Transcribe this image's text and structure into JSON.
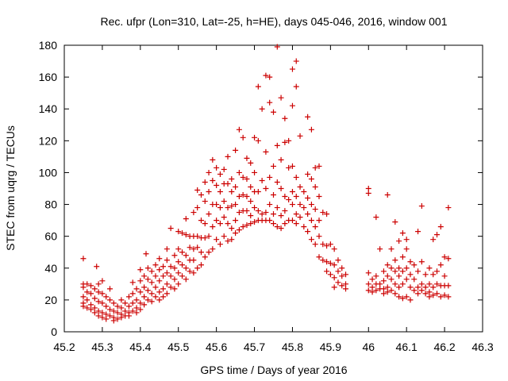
{
  "chart_data": {
    "type": "scatter",
    "title": "Rec. ufpr (Lon=310, Lat=-25, h=HE), days 045-046, 2016, window 001",
    "xlabel": "GPS time / Days of year 2016",
    "ylabel": "STEC from uqrg / TECUs",
    "xlim": [
      45.2,
      46.3
    ],
    "ylim": [
      0,
      180
    ],
    "xticks": [
      "45.2",
      "45.3",
      "45.4",
      "45.5",
      "45.6",
      "45.7",
      "45.8",
      "45.9",
      "46",
      "46.1",
      "46.2",
      "46.3"
    ],
    "yticks": [
      "0",
      "20",
      "40",
      "60",
      "80",
      "100",
      "120",
      "140",
      "160",
      "180"
    ],
    "grid": false,
    "legend": "none",
    "marker": "+",
    "color": "#cc0000",
    "points": [
      [
        45.25,
        46
      ],
      [
        45.25,
        30
      ],
      [
        45.25,
        28
      ],
      [
        45.25,
        22
      ],
      [
        45.25,
        18
      ],
      [
        45.25,
        16
      ],
      [
        45.26,
        30
      ],
      [
        45.26,
        25
      ],
      [
        45.26,
        20
      ],
      [
        45.26,
        15
      ],
      [
        45.27,
        29
      ],
      [
        45.27,
        24
      ],
      [
        45.27,
        17
      ],
      [
        45.27,
        14
      ],
      [
        45.28,
        27
      ],
      [
        45.28,
        21
      ],
      [
        45.28,
        15
      ],
      [
        45.28,
        12
      ],
      [
        45.285,
        41
      ],
      [
        45.29,
        30
      ],
      [
        45.29,
        25
      ],
      [
        45.29,
        19
      ],
      [
        45.29,
        13
      ],
      [
        45.29,
        10
      ],
      [
        45.3,
        32
      ],
      [
        45.3,
        24
      ],
      [
        45.3,
        18
      ],
      [
        45.3,
        12
      ],
      [
        45.3,
        9
      ],
      [
        45.31,
        22
      ],
      [
        45.31,
        16
      ],
      [
        45.31,
        11
      ],
      [
        45.31,
        8
      ],
      [
        45.32,
        27
      ],
      [
        45.32,
        20
      ],
      [
        45.32,
        14
      ],
      [
        45.32,
        10
      ],
      [
        45.33,
        18
      ],
      [
        45.33,
        13
      ],
      [
        45.33,
        9
      ],
      [
        45.33,
        7
      ],
      [
        45.34,
        16
      ],
      [
        45.34,
        12
      ],
      [
        45.34,
        8
      ],
      [
        45.35,
        20
      ],
      [
        45.35,
        15
      ],
      [
        45.35,
        11
      ],
      [
        45.35,
        9
      ],
      [
        45.36,
        18
      ],
      [
        45.36,
        13
      ],
      [
        45.36,
        10
      ],
      [
        45.37,
        22
      ],
      [
        45.37,
        16
      ],
      [
        45.37,
        12
      ],
      [
        45.37,
        10
      ],
      [
        45.38,
        31
      ],
      [
        45.38,
        24
      ],
      [
        45.38,
        18
      ],
      [
        45.38,
        13
      ],
      [
        45.39,
        27
      ],
      [
        45.39,
        20
      ],
      [
        45.39,
        15
      ],
      [
        45.39,
        12
      ],
      [
        45.4,
        39
      ],
      [
        45.4,
        32
      ],
      [
        45.4,
        25
      ],
      [
        45.4,
        18
      ],
      [
        45.4,
        14
      ],
      [
        45.41,
        35
      ],
      [
        45.41,
        28
      ],
      [
        45.41,
        22
      ],
      [
        45.41,
        17
      ],
      [
        45.415,
        49
      ],
      [
        45.42,
        40
      ],
      [
        45.42,
        33
      ],
      [
        45.42,
        26
      ],
      [
        45.42,
        20
      ],
      [
        45.43,
        38
      ],
      [
        45.43,
        31
      ],
      [
        45.43,
        24
      ],
      [
        45.43,
        19
      ],
      [
        45.44,
        42
      ],
      [
        45.44,
        35
      ],
      [
        45.44,
        28
      ],
      [
        45.44,
        22
      ],
      [
        45.45,
        46
      ],
      [
        45.45,
        39
      ],
      [
        45.45,
        32
      ],
      [
        45.45,
        25
      ],
      [
        45.45,
        20
      ],
      [
        45.46,
        41
      ],
      [
        45.46,
        35
      ],
      [
        45.46,
        27
      ],
      [
        45.46,
        22
      ],
      [
        45.47,
        52
      ],
      [
        45.47,
        45
      ],
      [
        45.47,
        37
      ],
      [
        45.47,
        30
      ],
      [
        45.47,
        24
      ],
      [
        45.48,
        65
      ],
      [
        45.48,
        41
      ],
      [
        45.48,
        35
      ],
      [
        45.48,
        28
      ],
      [
        45.49,
        48
      ],
      [
        45.49,
        40
      ],
      [
        45.49,
        33
      ],
      [
        45.49,
        27
      ],
      [
        45.5,
        63
      ],
      [
        45.5,
        52
      ],
      [
        45.5,
        44
      ],
      [
        45.5,
        37
      ],
      [
        45.5,
        30
      ],
      [
        45.51,
        62
      ],
      [
        45.51,
        50
      ],
      [
        45.51,
        42
      ],
      [
        45.51,
        35
      ],
      [
        45.52,
        71
      ],
      [
        45.52,
        61
      ],
      [
        45.52,
        48
      ],
      [
        45.52,
        40
      ],
      [
        45.52,
        33
      ],
      [
        45.53,
        60
      ],
      [
        45.53,
        53
      ],
      [
        45.53,
        45
      ],
      [
        45.53,
        38
      ],
      [
        45.54,
        75
      ],
      [
        45.54,
        60
      ],
      [
        45.54,
        52
      ],
      [
        45.54,
        45
      ],
      [
        45.54,
        37
      ],
      [
        45.55,
        89
      ],
      [
        45.55,
        78
      ],
      [
        45.55,
        60
      ],
      [
        45.55,
        53
      ],
      [
        45.55,
        40
      ],
      [
        45.56,
        86
      ],
      [
        45.56,
        70
      ],
      [
        45.56,
        59
      ],
      [
        45.56,
        50
      ],
      [
        45.56,
        42
      ],
      [
        45.57,
        94
      ],
      [
        45.57,
        82
      ],
      [
        45.57,
        68
      ],
      [
        45.57,
        59
      ],
      [
        45.57,
        47
      ],
      [
        45.58,
        100
      ],
      [
        45.58,
        88
      ],
      [
        45.58,
        74
      ],
      [
        45.58,
        60
      ],
      [
        45.58,
        50
      ],
      [
        45.59,
        108
      ],
      [
        45.59,
        95
      ],
      [
        45.59,
        80
      ],
      [
        45.59,
        66
      ],
      [
        45.59,
        52
      ],
      [
        45.6,
        103
      ],
      [
        45.6,
        92
      ],
      [
        45.6,
        80
      ],
      [
        45.6,
        70
      ],
      [
        45.6,
        58
      ],
      [
        45.61,
        99
      ],
      [
        45.61,
        88
      ],
      [
        45.61,
        78
      ],
      [
        45.61,
        68
      ],
      [
        45.61,
        55
      ],
      [
        45.62,
        102
      ],
      [
        45.62,
        93
      ],
      [
        45.62,
        82
      ],
      [
        45.62,
        72
      ],
      [
        45.62,
        60
      ],
      [
        45.63,
        110
      ],
      [
        45.63,
        93
      ],
      [
        45.63,
        78
      ],
      [
        45.63,
        68
      ],
      [
        45.63,
        57
      ],
      [
        45.64,
        96
      ],
      [
        45.64,
        88
      ],
      [
        45.64,
        79
      ],
      [
        45.64,
        65
      ],
      [
        45.64,
        58
      ],
      [
        45.65,
        114
      ],
      [
        45.65,
        91
      ],
      [
        45.65,
        80
      ],
      [
        45.65,
        70
      ],
      [
        45.65,
        62
      ],
      [
        45.66,
        127
      ],
      [
        45.66,
        100
      ],
      [
        45.66,
        85
      ],
      [
        45.66,
        75
      ],
      [
        45.66,
        64
      ],
      [
        45.67,
        122
      ],
      [
        45.67,
        97
      ],
      [
        45.67,
        86
      ],
      [
        45.67,
        76
      ],
      [
        45.67,
        66
      ],
      [
        45.68,
        109
      ],
      [
        45.68,
        96
      ],
      [
        45.68,
        85
      ],
      [
        45.68,
        76
      ],
      [
        45.68,
        67
      ],
      [
        45.69,
        106
      ],
      [
        45.69,
        91
      ],
      [
        45.69,
        82
      ],
      [
        45.69,
        73
      ],
      [
        45.69,
        68
      ],
      [
        45.7,
        122
      ],
      [
        45.7,
        100
      ],
      [
        45.7,
        88
      ],
      [
        45.7,
        78
      ],
      [
        45.7,
        69
      ],
      [
        45.71,
        154
      ],
      [
        45.71,
        120
      ],
      [
        45.71,
        88
      ],
      [
        45.71,
        76
      ],
      [
        45.71,
        70
      ],
      [
        45.72,
        140
      ],
      [
        45.72,
        95
      ],
      [
        45.72,
        74
      ],
      [
        45.72,
        70
      ],
      [
        45.73,
        161
      ],
      [
        45.73,
        113
      ],
      [
        45.73,
        90
      ],
      [
        45.73,
        75
      ],
      [
        45.73,
        70
      ],
      [
        45.74,
        160
      ],
      [
        45.74,
        144
      ],
      [
        45.74,
        97
      ],
      [
        45.74,
        80
      ],
      [
        45.74,
        70
      ],
      [
        45.75,
        138
      ],
      [
        45.75,
        104
      ],
      [
        45.75,
        86
      ],
      [
        45.75,
        74
      ],
      [
        45.75,
        68
      ],
      [
        45.76,
        179
      ],
      [
        45.76,
        117
      ],
      [
        45.76,
        94
      ],
      [
        45.76,
        78
      ],
      [
        45.76,
        66
      ],
      [
        45.77,
        147
      ],
      [
        45.77,
        108
      ],
      [
        45.77,
        90
      ],
      [
        45.77,
        73
      ],
      [
        45.77,
        65
      ],
      [
        45.78,
        134
      ],
      [
        45.78,
        119
      ],
      [
        45.78,
        85
      ],
      [
        45.78,
        76
      ],
      [
        45.78,
        68
      ],
      [
        45.79,
        120
      ],
      [
        45.79,
        103
      ],
      [
        45.79,
        83
      ],
      [
        45.79,
        70
      ],
      [
        45.8,
        165
      ],
      [
        45.8,
        142
      ],
      [
        45.8,
        104
      ],
      [
        45.8,
        88
      ],
      [
        45.8,
        80
      ],
      [
        45.8,
        70
      ],
      [
        45.81,
        170
      ],
      [
        45.81,
        154
      ],
      [
        45.81,
        97
      ],
      [
        45.81,
        85
      ],
      [
        45.81,
        74
      ],
      [
        45.81,
        68
      ],
      [
        45.82,
        123
      ],
      [
        45.82,
        91
      ],
      [
        45.82,
        80
      ],
      [
        45.82,
        72
      ],
      [
        45.83,
        88
      ],
      [
        45.83,
        78
      ],
      [
        45.83,
        66
      ],
      [
        45.84,
        135
      ],
      [
        45.84,
        99
      ],
      [
        45.84,
        84
      ],
      [
        45.84,
        74
      ],
      [
        45.84,
        63
      ],
      [
        45.85,
        127
      ],
      [
        45.85,
        96
      ],
      [
        45.85,
        80
      ],
      [
        45.85,
        70
      ],
      [
        45.85,
        58
      ],
      [
        45.86,
        103
      ],
      [
        45.86,
        91
      ],
      [
        45.86,
        77
      ],
      [
        45.86,
        66
      ],
      [
        45.86,
        55
      ],
      [
        45.87,
        104
      ],
      [
        45.87,
        85
      ],
      [
        45.87,
        70
      ],
      [
        45.87,
        60
      ],
      [
        45.87,
        47
      ],
      [
        45.88,
        75
      ],
      [
        45.88,
        55
      ],
      [
        45.88,
        45
      ],
      [
        45.89,
        74
      ],
      [
        45.89,
        54
      ],
      [
        45.89,
        44
      ],
      [
        45.89,
        38
      ],
      [
        45.9,
        55
      ],
      [
        45.9,
        43
      ],
      [
        45.9,
        36
      ],
      [
        45.91,
        52
      ],
      [
        45.91,
        42
      ],
      [
        45.91,
        34
      ],
      [
        45.91,
        28
      ],
      [
        45.92,
        45
      ],
      [
        45.92,
        38
      ],
      [
        45.92,
        31
      ],
      [
        45.93,
        40
      ],
      [
        45.93,
        35
      ],
      [
        45.93,
        29
      ],
      [
        45.94,
        36
      ],
      [
        45.94,
        30
      ],
      [
        45.94,
        27
      ],
      [
        46.0,
        90
      ],
      [
        46.0,
        87
      ],
      [
        46.0,
        37
      ],
      [
        46.0,
        30
      ],
      [
        46.0,
        26
      ],
      [
        46.01,
        33
      ],
      [
        46.01,
        28
      ],
      [
        46.01,
        25
      ],
      [
        46.02,
        72
      ],
      [
        46.02,
        35
      ],
      [
        46.02,
        30
      ],
      [
        46.02,
        26
      ],
      [
        46.03,
        52
      ],
      [
        46.03,
        30
      ],
      [
        46.03,
        27
      ],
      [
        46.04,
        38
      ],
      [
        46.04,
        32
      ],
      [
        46.04,
        27
      ],
      [
        46.04,
        24
      ],
      [
        46.05,
        86
      ],
      [
        46.05,
        42
      ],
      [
        46.05,
        35
      ],
      [
        46.05,
        28
      ],
      [
        46.05,
        25
      ],
      [
        46.06,
        52
      ],
      [
        46.06,
        40
      ],
      [
        46.06,
        33
      ],
      [
        46.06,
        26
      ],
      [
        46.07,
        69
      ],
      [
        46.07,
        45
      ],
      [
        46.07,
        38
      ],
      [
        46.07,
        30
      ],
      [
        46.07,
        24
      ],
      [
        46.08,
        57
      ],
      [
        46.08,
        40
      ],
      [
        46.08,
        35
      ],
      [
        46.08,
        28
      ],
      [
        46.08,
        22
      ],
      [
        46.09,
        62
      ],
      [
        46.09,
        47
      ],
      [
        46.09,
        38
      ],
      [
        46.09,
        30
      ],
      [
        46.09,
        21
      ],
      [
        46.1,
        58
      ],
      [
        46.1,
        52
      ],
      [
        46.1,
        40
      ],
      [
        46.1,
        33
      ],
      [
        46.1,
        22
      ],
      [
        46.11,
        44
      ],
      [
        46.11,
        36
      ],
      [
        46.11,
        28
      ],
      [
        46.11,
        20
      ],
      [
        46.12,
        42
      ],
      [
        46.12,
        33
      ],
      [
        46.12,
        26
      ],
      [
        46.13,
        63
      ],
      [
        46.13,
        38
      ],
      [
        46.13,
        28
      ],
      [
        46.13,
        24
      ],
      [
        46.14,
        79
      ],
      [
        46.14,
        44
      ],
      [
        46.14,
        30
      ],
      [
        46.14,
        26
      ],
      [
        46.15,
        36
      ],
      [
        46.15,
        28
      ],
      [
        46.15,
        24
      ],
      [
        46.16,
        40
      ],
      [
        46.16,
        30
      ],
      [
        46.16,
        25
      ],
      [
        46.16,
        22
      ],
      [
        46.17,
        58
      ],
      [
        46.17,
        36
      ],
      [
        46.17,
        28
      ],
      [
        46.17,
        23
      ],
      [
        46.18,
        61
      ],
      [
        46.18,
        38
      ],
      [
        46.18,
        30
      ],
      [
        46.18,
        24
      ],
      [
        46.19,
        66
      ],
      [
        46.19,
        42
      ],
      [
        46.19,
        29
      ],
      [
        46.19,
        22
      ],
      [
        46.2,
        47
      ],
      [
        46.2,
        35
      ],
      [
        46.2,
        29
      ],
      [
        46.2,
        23
      ],
      [
        46.21,
        78
      ],
      [
        46.21,
        46
      ],
      [
        46.21,
        29
      ],
      [
        46.21,
        22
      ]
    ]
  }
}
